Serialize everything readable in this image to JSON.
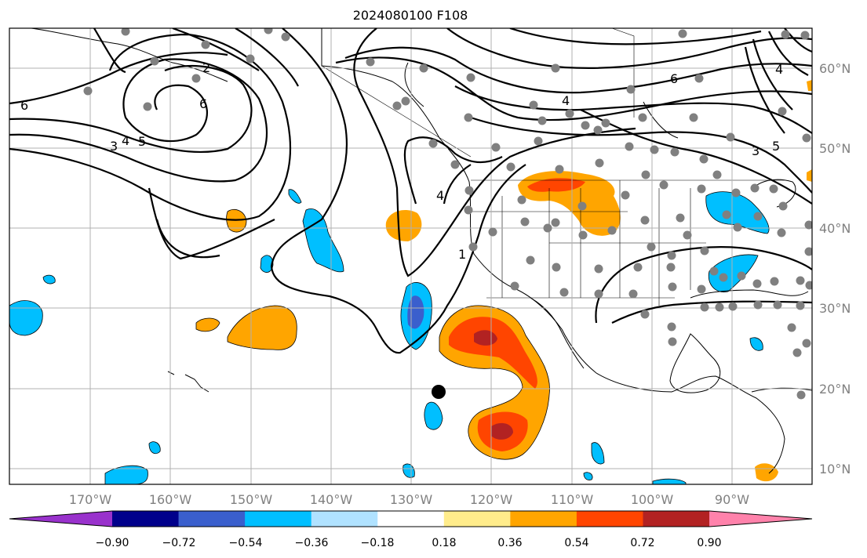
{
  "title": "2024080100 F108",
  "longitude_labels": [
    "170°W",
    "160°W",
    "150°W",
    "140°W",
    "130°W",
    "120°W",
    "110°W",
    "100°W",
    "90°W"
  ],
  "latitude_labels": [
    "60°N",
    "50°N",
    "40°N",
    "30°N",
    "20°N",
    "10°N"
  ],
  "colorbar": {
    "ticks": [
      "−0.90",
      "−0.72",
      "−0.54",
      "−0.36",
      "−0.18",
      "0.18",
      "0.36",
      "0.54",
      "0.72",
      "0.90"
    ],
    "colors": [
      "#9932cc",
      "#00008b",
      "#3a5fcd",
      "#00bfff",
      "#b0e2ff",
      "#ffffff",
      "#ffec8b",
      "#ffa500",
      "#ff4500",
      "#b22222",
      "#ff82ab"
    ]
  },
  "contour_labels": [
    "6",
    "2",
    "6",
    "4",
    "5",
    "3",
    "4",
    "1",
    "6",
    "4",
    "3",
    "5",
    "4"
  ],
  "colors": {
    "positive_orange": "#ffa500",
    "positive_red": "#ff4500",
    "positive_dark": "#b22222",
    "negative_blue": "#00bfff",
    "negative_dark": "#3a5fcd",
    "station_dots": "#808080",
    "storm_marker": "#000000"
  }
}
